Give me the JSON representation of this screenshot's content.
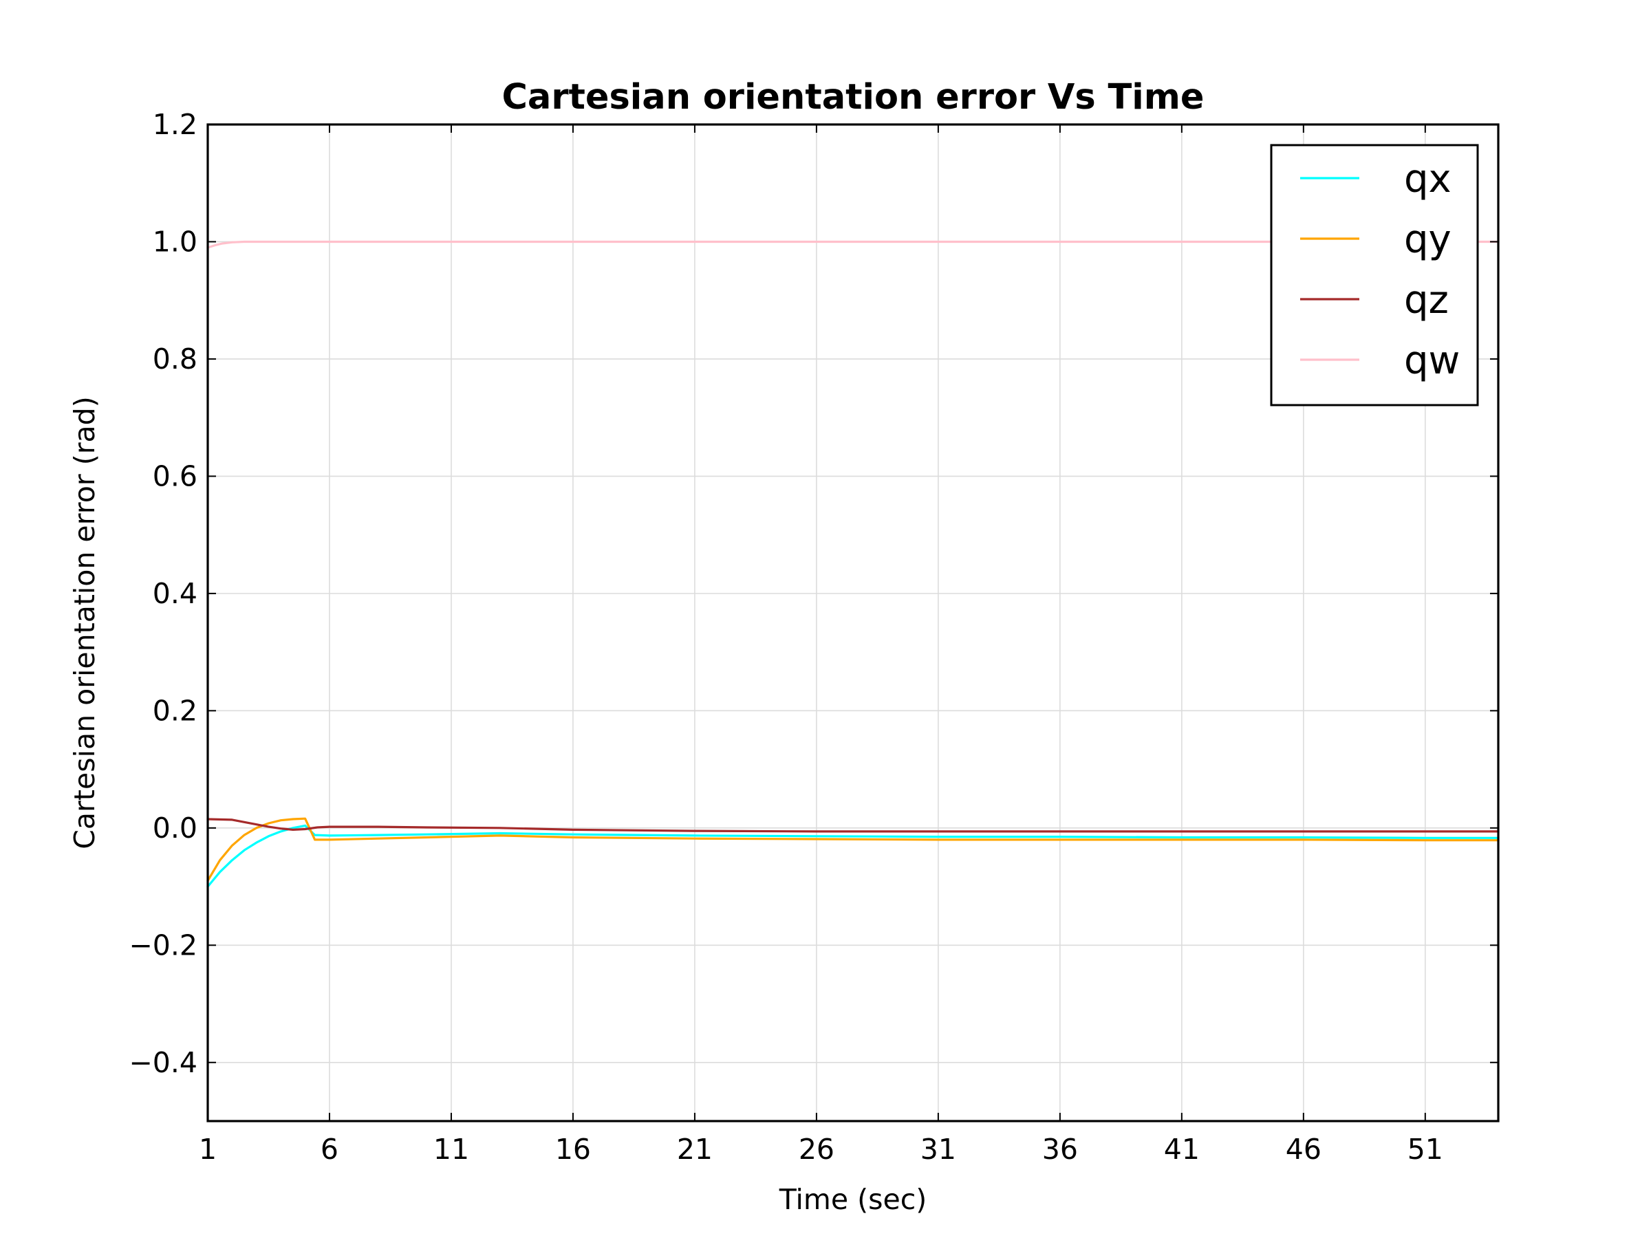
{
  "chart_data": {
    "type": "line",
    "title": "Cartesian orientation error Vs Time",
    "xlabel": "Time (sec)",
    "ylabel": "Cartesian orientation error (rad)",
    "xlim": [
      1,
      54
    ],
    "ylim": [
      -0.5,
      1.2
    ],
    "xticks": [
      1,
      6,
      11,
      16,
      21,
      26,
      31,
      36,
      41,
      46,
      51
    ],
    "xtick_labels": [
      "1",
      "6",
      "11",
      "16",
      "21",
      "26",
      "31",
      "36",
      "41",
      "46",
      "51"
    ],
    "yticks": [
      -0.4,
      -0.2,
      0.0,
      0.2,
      0.4,
      0.6,
      0.8,
      1.0,
      1.2
    ],
    "ytick_labels": [
      "−0.4",
      "−0.2",
      "0.0",
      "0.2",
      "0.4",
      "0.6",
      "0.8",
      "1.0",
      "1.2"
    ],
    "grid": true,
    "legend_position": "top-right",
    "series": [
      {
        "name": "qx",
        "color": "#00ffff",
        "x": [
          1,
          1.5,
          2,
          2.5,
          3,
          3.5,
          4,
          4.5,
          5,
          5.4,
          6,
          8,
          10,
          13,
          16,
          21,
          26,
          31,
          36,
          41,
          46,
          51,
          54
        ],
        "y": [
          -0.1,
          -0.075,
          -0.055,
          -0.038,
          -0.025,
          -0.014,
          -0.006,
          0.0,
          0.004,
          -0.012,
          -0.013,
          -0.012,
          -0.011,
          -0.009,
          -0.011,
          -0.013,
          -0.014,
          -0.015,
          -0.015,
          -0.016,
          -0.016,
          -0.017,
          -0.017
        ]
      },
      {
        "name": "qy",
        "color": "#ffa500",
        "x": [
          1,
          1.5,
          2,
          2.5,
          3,
          3.5,
          4,
          4.5,
          5,
          5.4,
          6,
          8,
          10,
          13,
          16,
          21,
          26,
          31,
          36,
          41,
          46,
          51,
          54
        ],
        "y": [
          -0.09,
          -0.055,
          -0.03,
          -0.012,
          0.0,
          0.008,
          0.013,
          0.015,
          0.016,
          -0.02,
          -0.02,
          -0.018,
          -0.016,
          -0.013,
          -0.016,
          -0.018,
          -0.019,
          -0.02,
          -0.02,
          -0.02,
          -0.02,
          -0.021,
          -0.021
        ]
      },
      {
        "name": "qz",
        "color": "#a52a2a",
        "x": [
          1,
          2,
          2.5,
          3,
          3.5,
          4,
          4.5,
          5,
          5.5,
          6,
          8,
          10,
          13,
          16,
          21,
          26,
          31,
          36,
          41,
          46,
          51,
          54
        ],
        "y": [
          0.015,
          0.014,
          0.01,
          0.006,
          0.002,
          -0.001,
          -0.003,
          -0.002,
          0.001,
          0.002,
          0.002,
          0.001,
          0.0,
          -0.003,
          -0.005,
          -0.006,
          -0.006,
          -0.006,
          -0.006,
          -0.006,
          -0.006,
          -0.006
        ]
      },
      {
        "name": "qw",
        "color": "#ffc0cb",
        "x": [
          1,
          1.3,
          1.6,
          2,
          2.5,
          3,
          4,
          6,
          11,
          21,
          31,
          41,
          51,
          54
        ],
        "y": [
          0.99,
          0.994,
          0.997,
          0.999,
          1.0,
          1.0,
          1.0,
          1.0,
          1.0,
          1.0,
          1.0,
          1.0,
          1.0,
          1.0
        ]
      }
    ]
  }
}
